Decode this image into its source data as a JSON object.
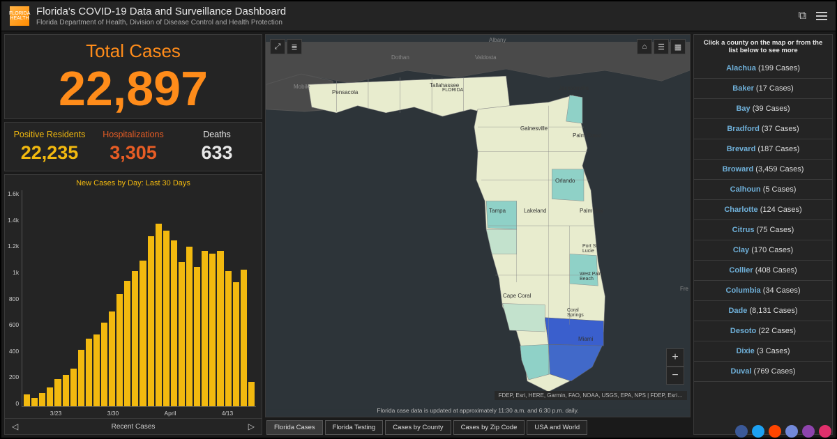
{
  "header": {
    "title": "Florida's COVID-19 Data and Surveillance Dashboard",
    "subtitle": "Florida Department of Health, Division of Disease Control and Health Protection",
    "logo_text": "FLORIDA HEALTH"
  },
  "totals": {
    "label": "Total Cases",
    "value": "22,897"
  },
  "stats": [
    {
      "label": "Positive Residents",
      "value": "22,235",
      "color": "c-yellow"
    },
    {
      "label": "Hospitalizations",
      "value": "3,305",
      "color": "c-orange"
    },
    {
      "label": "Deaths",
      "value": "633",
      "color": "c-white"
    }
  ],
  "chart": {
    "title": "New Cases by Day: Last 30 Days",
    "footer_label": "Recent Cases",
    "type": "bar",
    "bar_color": "#f2b90f",
    "background_color": "#242424",
    "y_ticks": [
      "1.6k",
      "1.4k",
      "1.2k",
      "1k",
      "800",
      "600",
      "400",
      "200",
      "0"
    ],
    "x_ticks": [
      "3/23",
      "3/30",
      "April",
      "4/13"
    ],
    "ylim": [
      0,
      1600
    ],
    "values": [
      90,
      60,
      100,
      140,
      200,
      230,
      280,
      420,
      500,
      530,
      620,
      700,
      830,
      930,
      1000,
      1080,
      1260,
      1350,
      1300,
      1230,
      1070,
      1180,
      1030,
      1150,
      1130,
      1150,
      1000,
      920,
      1010,
      180
    ],
    "bar_width": 1,
    "axis_color": "#555555",
    "tick_color": "#cccccc",
    "tick_fontsize": 8.5
  },
  "map": {
    "attribution": "FDEP, Esri, HERE, Garmin, FAO, NOAA, USGS, EPA, NPS | FDEP, Esri…",
    "update_note": "Florida case data is updated at approximately 11:30 a.m. and 6:30 p.m. daily.",
    "background_color": "#2d3439",
    "land_color": "#4a4a4a",
    "cities_on_map": [
      "Albany",
      "Dothan",
      "Valdosta",
      "Mobile",
      "Pensacola",
      "Tallahassee",
      "Gainesville",
      "Jacksonville",
      "Palm Coast",
      "Orlando",
      "Tampa",
      "Lakeland",
      "Palm Bay",
      "Port St. Lucie",
      "West Palm Beach",
      "Cape Coral",
      "Coral Springs",
      "Miami",
      "Fre"
    ],
    "choropleth_colors": {
      "lowest": "#e8ecce",
      "low": "#c3e2cd",
      "mid": "#8fd1c7",
      "high": "#5ab4c4",
      "highest": "#3a5fcd"
    }
  },
  "tabs": [
    "Florida Cases",
    "Florida Testing",
    "Cases by County",
    "Cases by Zip Code",
    "USA and World"
  ],
  "active_tab_index": 0,
  "county_panel": {
    "header": "Click a county on the map or from the list below to see more",
    "counties": [
      {
        "name": "Alachua",
        "cases": "199 Cases"
      },
      {
        "name": "Baker",
        "cases": "17 Cases"
      },
      {
        "name": "Bay",
        "cases": "39 Cases"
      },
      {
        "name": "Bradford",
        "cases": "37 Cases"
      },
      {
        "name": "Brevard",
        "cases": "187 Cases"
      },
      {
        "name": "Broward",
        "cases": "3,459 Cases"
      },
      {
        "name": "Calhoun",
        "cases": "5 Cases"
      },
      {
        "name": "Charlotte",
        "cases": "124 Cases"
      },
      {
        "name": "Citrus",
        "cases": "75 Cases"
      },
      {
        "name": "Clay",
        "cases": "170 Cases"
      },
      {
        "name": "Collier",
        "cases": "408 Cases"
      },
      {
        "name": "Columbia",
        "cases": "34 Cases"
      },
      {
        "name": "Dade",
        "cases": "8,131 Cases"
      },
      {
        "name": "Desoto",
        "cases": "22 Cases"
      },
      {
        "name": "Dixie",
        "cases": "3 Cases"
      },
      {
        "name": "Duval",
        "cases": "769 Cases"
      }
    ]
  },
  "taskbar_colors": [
    "#3b5998",
    "#1da1f2",
    "#ff4500",
    "#7289da",
    "#8e44ad",
    "#e1306c"
  ]
}
